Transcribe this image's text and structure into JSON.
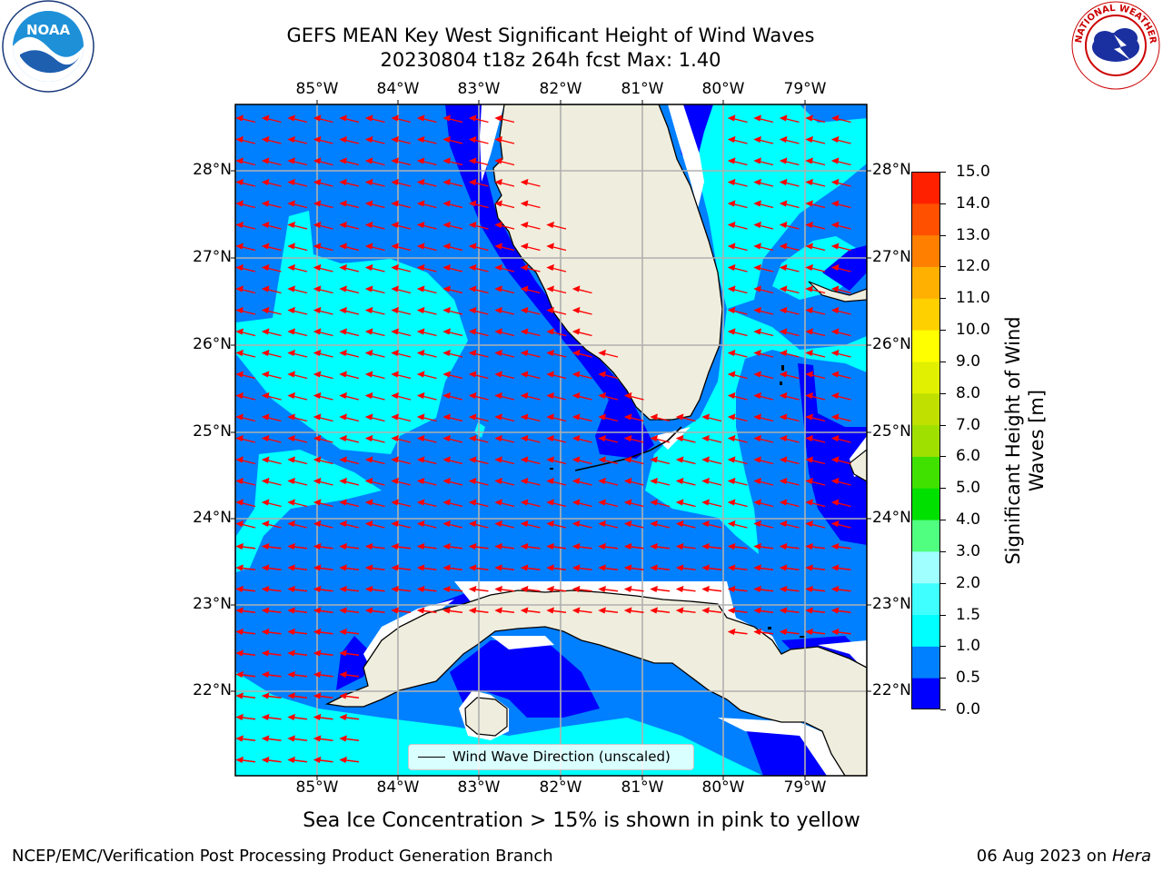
{
  "title_line1": "GEFS MEAN Key West Significant Height of Wind Waves",
  "title_line2": "20230804 t18z 264h fcst   Max: 1.40",
  "lon_labels": [
    "85°W",
    "84°W",
    "83°W",
    "82°W",
    "81°W",
    "80°W",
    "79°W"
  ],
  "lat_labels": [
    "28°N",
    "27°N",
    "26°N",
    "25°N",
    "24°N",
    "23°N",
    "22°N"
  ],
  "colorbar": {
    "label_line1": "Significant Height of Wind",
    "label_line2": "Waves [m]",
    "ticks": [
      "15.0",
      "14.0",
      "13.0",
      "12.0",
      "11.0",
      "10.0",
      "9.0",
      "8.0",
      "7.0",
      "6.0",
      "5.0",
      "4.0",
      "3.0",
      "2.0",
      "1.5",
      "1.0",
      "0.5",
      "0.0"
    ],
    "colors": [
      "#0000ff",
      "#0080ff",
      "#00ffff",
      "#40ffff",
      "#a0ffff",
      "#50ff80",
      "#00e000",
      "#40e000",
      "#a0e000",
      "#c0e000",
      "#e0f000",
      "#ffff00",
      "#ffd000",
      "#ffb000",
      "#ff8000",
      "#ff5000",
      "#ff2000"
    ]
  },
  "legend_label": "Wind Wave Direction (unscaled)",
  "footer_note": "Sea Ice Concentration > 15% is shown in pink to yellow",
  "footer_left": "NCEP/EMC/Verification Post Processing Product Generation Branch",
  "footer_right_date": "06 Aug 2023 on ",
  "footer_right_host": "Hera",
  "logo_left_text": "NOAA",
  "logo_right_text": "NATIONAL WEATHER SERVICE",
  "colors": {
    "land": "#efeddd",
    "deep_blue": "#0000ff",
    "mid_blue": "#0080ff",
    "cyan": "#00ffff",
    "arrow": "#ff0000",
    "grid": "#b0b0b0"
  }
}
